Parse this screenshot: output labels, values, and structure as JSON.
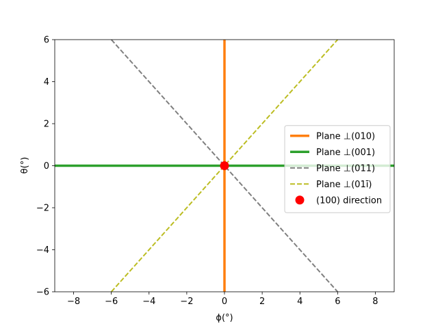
{
  "chart_data": {
    "type": "line",
    "title": "",
    "xlabel": "ϕ(°)",
    "ylabel": "θ(°)",
    "xlim": [
      -9,
      9
    ],
    "ylim": [
      -6,
      6
    ],
    "xticks": [
      -8,
      -6,
      -4,
      -2,
      0,
      2,
      4,
      6,
      8
    ],
    "yticks": [
      -6,
      -4,
      -2,
      0,
      2,
      4,
      6
    ],
    "xtick_labels": [
      "−8",
      "−6",
      "−4",
      "−2",
      "0",
      "2",
      "4",
      "6",
      "8"
    ],
    "ytick_labels": [
      "−6",
      "−4",
      "−2",
      "0",
      "2",
      "4",
      "6"
    ],
    "grid": false,
    "legend_position": "center-right",
    "series": [
      {
        "name": "Plane ⊥(010)",
        "kind": "line",
        "style": "solid",
        "color": "#ff7f0e",
        "x": [
          0,
          0
        ],
        "y": [
          -6,
          6
        ]
      },
      {
        "name": "Plane ⊥(001)",
        "kind": "line",
        "style": "solid",
        "color": "#2ca02c",
        "x": [
          -9,
          9
        ],
        "y": [
          0,
          0
        ]
      },
      {
        "name": "Plane ⊥(011)",
        "kind": "line",
        "style": "dashed",
        "color": "#7f7f7f",
        "x": [
          -6,
          6
        ],
        "y": [
          6,
          -6
        ]
      },
      {
        "name": "Plane ⊥(01ī)",
        "kind": "line",
        "style": "dashed",
        "color": "#bcbd22",
        "x": [
          -6,
          6
        ],
        "y": [
          -6,
          6
        ]
      },
      {
        "name": "(100) direction",
        "kind": "point",
        "color": "#ff0000",
        "x": [
          0
        ],
        "y": [
          0
        ]
      }
    ]
  }
}
